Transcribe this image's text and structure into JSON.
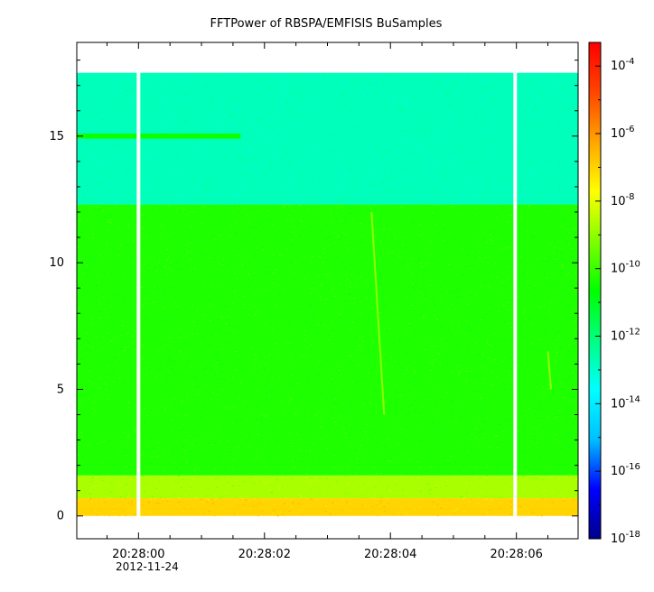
{
  "chart_data": {
    "type": "heatmap",
    "title": "FFTPower of RBSPA/EMFISIS  BuSamples",
    "xlabel": "",
    "ylabel": "",
    "x_tick_labels": [
      "20:28:00",
      "20:28:02",
      "20:28:04",
      "20:28:06"
    ],
    "x_tick_values_s": [
      0,
      2,
      4,
      6
    ],
    "date_label": "2012-11-24",
    "xlim_s": [
      -0.98,
      6.98
    ],
    "y_ticks": [
      0,
      5,
      10,
      15
    ],
    "ylim": [
      -0.9,
      18.7
    ],
    "data_freq_range": [
      0,
      17.5
    ],
    "gaps_s": [
      0.0,
      5.98
    ],
    "bands": [
      {
        "y_from": 12.3,
        "y_to": 17.5,
        "log_power": -12.8
      },
      {
        "y_from": 1.6,
        "y_to": 12.3,
        "log_power": -10.3
      },
      {
        "y_from": 0.7,
        "y_to": 1.6,
        "log_power": -8.7
      },
      {
        "y_from": 0.0,
        "y_to": 0.7,
        "log_power": -7.0
      }
    ],
    "features": [
      {
        "type": "faint_line",
        "x_s": 1.25,
        "y_from": 14.9,
        "y_to": 15.1,
        "x_to_s": 1.62
      },
      {
        "type": "streak",
        "x_from_s": 3.7,
        "y_from": 12.0,
        "x_to_s": 3.9,
        "y_to": 4.0
      },
      {
        "type": "streak",
        "x_from_s": 6.5,
        "y_from": 6.5,
        "x_to_s": 6.55,
        "y_to": 5.0
      }
    ],
    "colorbar": {
      "scale": "log",
      "range": [
        -18,
        -3.3
      ],
      "tick_exponents": [
        -4,
        -6,
        -8,
        -10,
        -12,
        -14,
        -16,
        -18
      ],
      "tick_base": "10",
      "colors": [
        "#00008b",
        "#0000ff",
        "#00bfff",
        "#00ffff",
        "#00ff80",
        "#00ff00",
        "#80ff00",
        "#ffff00",
        "#ffa500",
        "#ff4500",
        "#ff0000"
      ]
    }
  }
}
